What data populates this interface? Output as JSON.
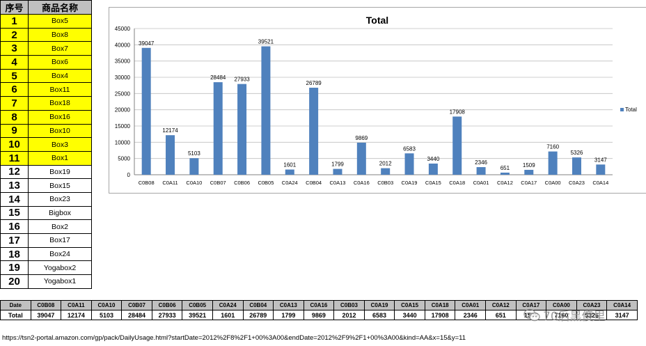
{
  "left_table": {
    "header_no": "序号",
    "header_name": "商品名称",
    "rows": [
      {
        "no": "1",
        "name": "Box5",
        "highlight": true
      },
      {
        "no": "2",
        "name": "Box8",
        "highlight": true
      },
      {
        "no": "3",
        "name": "Box7",
        "highlight": true
      },
      {
        "no": "4",
        "name": "Box6",
        "highlight": true
      },
      {
        "no": "5",
        "name": "Box4",
        "highlight": true
      },
      {
        "no": "6",
        "name": "Box11",
        "highlight": true
      },
      {
        "no": "7",
        "name": "Box18",
        "highlight": true
      },
      {
        "no": "8",
        "name": "Box16",
        "highlight": true
      },
      {
        "no": "9",
        "name": "Box10",
        "highlight": true
      },
      {
        "no": "10",
        "name": "Box3",
        "highlight": true
      },
      {
        "no": "11",
        "name": "Box1",
        "highlight": true
      },
      {
        "no": "12",
        "name": "Box19",
        "highlight": false
      },
      {
        "no": "13",
        "name": "Box15",
        "highlight": false
      },
      {
        "no": "14",
        "name": "Box23",
        "highlight": false
      },
      {
        "no": "15",
        "name": "Bigbox",
        "highlight": false
      },
      {
        "no": "16",
        "name": "Box2",
        "highlight": false
      },
      {
        "no": "17",
        "name": "Box17",
        "highlight": false
      },
      {
        "no": "18",
        "name": "Box24",
        "highlight": false
      },
      {
        "no": "19",
        "name": "Yogabox2",
        "highlight": false
      },
      {
        "no": "20",
        "name": "Yogabox1",
        "highlight": false
      }
    ]
  },
  "chart_data": {
    "type": "bar",
    "title": "Total",
    "categories": [
      "C0B08",
      "C0A11",
      "C0A10",
      "C0B07",
      "C0B06",
      "C0B05",
      "C0A24",
      "C0B04",
      "C0A13",
      "C0A16",
      "C0B03",
      "C0A19",
      "C0A15",
      "C0A18",
      "C0A01",
      "C0A12",
      "C0A17",
      "C0A00",
      "C0A23",
      "C0A14"
    ],
    "series": [
      {
        "name": "Total",
        "values": [
          39047,
          12174,
          5103,
          28484,
          27933,
          39521,
          1601,
          26789,
          1799,
          9869,
          2012,
          6583,
          3440,
          17908,
          2346,
          651,
          1509,
          7160,
          5326,
          3147
        ]
      }
    ],
    "ylim": [
      0,
      45000
    ],
    "yticks": [
      0,
      5000,
      10000,
      15000,
      20000,
      25000,
      30000,
      35000,
      40000,
      45000
    ],
    "grid": true,
    "legend": "right",
    "bar_color": "#4f81bd",
    "xlabel": "",
    "ylabel": ""
  },
  "bottom_table": {
    "date_label": "Date",
    "total_label": "Total",
    "columns": [
      "C0B08",
      "C0A11",
      "C0A10",
      "C0B07",
      "C0B06",
      "C0B05",
      "C0A24",
      "C0B04",
      "C0A13",
      "C0A16",
      "C0B03",
      "C0A19",
      "C0A15",
      "C0A18",
      "C0A01",
      "C0A12",
      "C0A17",
      "C0A00",
      "C0A23",
      "C0A14"
    ],
    "totals": [
      "39047",
      "12174",
      "5103",
      "28484",
      "27933",
      "39521",
      "1601",
      "26789",
      "1799",
      "9869",
      "2012",
      "6583",
      "3440",
      "17908",
      "2346",
      "651",
      "1509",
      "7160",
      "5326",
      "3147"
    ]
  },
  "url_text": "https://tsn2-portal.amazon.com/gp/pack/DailyUsage.html?startDate=2012%2F8%2F1+00%3A00&endDate=2012%2F9%2F1+00%3A00&kind=AA&x=15&y=11",
  "watermark": {
    "text": "70后黑傻里",
    "icon": "wechat-icon"
  }
}
